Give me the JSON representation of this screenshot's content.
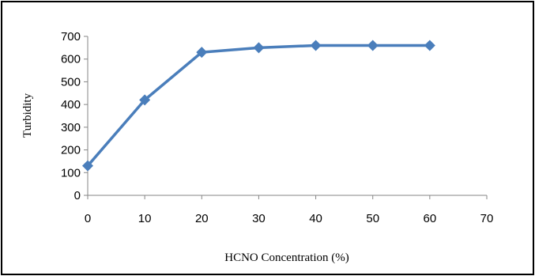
{
  "chart_data": {
    "type": "line",
    "title": "",
    "xlabel": "HCNO Concentration (%)",
    "ylabel": "Turbidity",
    "xlim": [
      0,
      70
    ],
    "ylim": [
      0,
      700
    ],
    "xticks": [
      0,
      10,
      20,
      30,
      40,
      50,
      60,
      70
    ],
    "yticks": [
      0,
      100,
      200,
      300,
      400,
      500,
      600,
      700
    ],
    "grid": false,
    "legend": "none",
    "series": [
      {
        "x": [
          0,
          10,
          20,
          30,
          40,
          50,
          60
        ],
        "y": [
          130,
          420,
          630,
          650,
          660,
          660,
          660
        ],
        "color": "#4a7ebb",
        "marker": "diamond"
      }
    ]
  }
}
